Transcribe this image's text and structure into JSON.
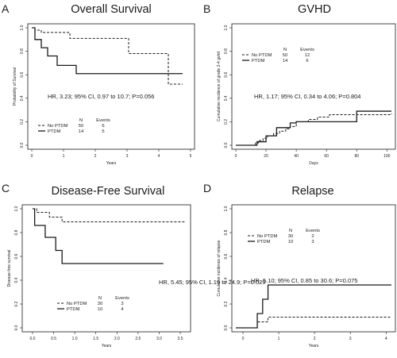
{
  "line_colors": {
    "solid": "#1a1a1a",
    "dashed": "#1a1a1a"
  },
  "chart_data": [
    {
      "type": "line",
      "panel_letter": "A",
      "title": "Overall Survival",
      "xlabel": "Years",
      "ylabel": "Probability of Survival",
      "xlim": [
        0,
        5
      ],
      "ylim": [
        0,
        1
      ],
      "x_ticks": [
        "0",
        "1",
        "2",
        "3",
        "4",
        "5"
      ],
      "y_ticks": [
        "0.0",
        "0.2",
        "0.4",
        "0.6",
        "0.8",
        "1.0"
      ],
      "annotation": "HR, 3.23; 95% CI, 0.97 to 10.7; P=0.056",
      "legend": {
        "col_n": "N",
        "col_events": "Events",
        "rows": [
          {
            "name": "No PTDM",
            "style": "dashed",
            "n": "50",
            "events": "6"
          },
          {
            "name": "PTDM",
            "style": "solid",
            "n": "14",
            "events": "5"
          }
        ]
      },
      "series": [
        {
          "name": "No PTDM",
          "style": "dashed",
          "x": [
            0,
            0.1,
            0.3,
            0.8,
            1.2,
            3.05,
            4.3,
            4.75
          ],
          "y": [
            1.0,
            0.98,
            0.96,
            0.96,
            0.91,
            0.78,
            0.52,
            0.52
          ]
        },
        {
          "name": "PTDM",
          "style": "solid",
          "x": [
            0,
            0.1,
            0.3,
            0.5,
            0.8,
            1.4,
            4.75
          ],
          "y": [
            1.0,
            0.9,
            0.83,
            0.76,
            0.68,
            0.61,
            0.61
          ]
        }
      ]
    },
    {
      "type": "line",
      "panel_letter": "B",
      "title": "GVHD",
      "xlabel": "Days",
      "ylabel": "Cumulative incidence of grade 2-4 gvhd",
      "xlim": [
        0,
        103
      ],
      "ylim": [
        0,
        1
      ],
      "x_ticks": [
        "0",
        "20",
        "40",
        "60",
        "80",
        "100"
      ],
      "y_ticks": [
        "0.0",
        "0.2",
        "0.4",
        "0.6",
        "0.8",
        "1.0"
      ],
      "annotation": "HR, 1.17; 95% CI, 0.34 to 4.06; P=0.804",
      "legend": {
        "col_n": "N",
        "col_events": "Events",
        "rows": [
          {
            "name": "No PTDM",
            "style": "dashed",
            "n": "50",
            "events": "12"
          },
          {
            "name": "PTDM",
            "style": "solid",
            "n": "14",
            "events": "6"
          }
        ]
      },
      "series": [
        {
          "name": "No PTDM",
          "style": "dashed",
          "x": [
            0,
            13,
            15,
            18,
            21,
            25,
            29,
            33,
            36,
            40,
            48,
            54,
            62,
            80,
            92,
            103
          ],
          "y": [
            0,
            0.02,
            0.04,
            0.06,
            0.08,
            0.1,
            0.12,
            0.14,
            0.16,
            0.2,
            0.22,
            0.24,
            0.26,
            0.26,
            0.26,
            0.27
          ]
        },
        {
          "name": "PTDM",
          "style": "solid",
          "x": [
            0,
            14,
            20,
            27,
            36,
            40,
            80,
            103
          ],
          "y": [
            0,
            0.03,
            0.08,
            0.15,
            0.19,
            0.2,
            0.29,
            0.29
          ]
        }
      ]
    },
    {
      "type": "line",
      "panel_letter": "C",
      "title": "Disease-Free Survival",
      "xlabel": "Years",
      "ylabel": "Disease-free survival",
      "xlim": [
        -0.15,
        3.65
      ],
      "ylim": [
        0,
        1
      ],
      "x_ticks": [
        "0.0",
        "0.5",
        "1.0",
        "1.5",
        "2.0",
        "2.5",
        "3.0",
        "3.5"
      ],
      "y_ticks": [
        "0.0",
        "0.2",
        "0.4",
        "0.6",
        "0.8",
        "1.0"
      ],
      "annotation": "HR, 5.45; 95% CI, 1.19 to 24.9; P=0.029",
      "legend": {
        "col_n": "N",
        "col_events": "Events",
        "rows": [
          {
            "name": "No PTDM",
            "style": "dashed",
            "n": "30",
            "events": "3"
          },
          {
            "name": "PTDM",
            "style": "solid",
            "n": "10",
            "events": "4"
          }
        ]
      },
      "series": [
        {
          "name": "No PTDM",
          "style": "dashed",
          "x": [
            0,
            0.1,
            0.4,
            0.7,
            3.6
          ],
          "y": [
            1.0,
            0.97,
            0.93,
            0.89,
            0.89
          ]
        },
        {
          "name": "PTDM",
          "style": "solid",
          "x": [
            0,
            0.05,
            0.3,
            0.55,
            0.7,
            3.1
          ],
          "y": [
            1.0,
            0.86,
            0.76,
            0.65,
            0.54,
            0.54
          ]
        }
      ]
    },
    {
      "type": "line",
      "panel_letter": "D",
      "title": "Relapse",
      "xlabel": "Years",
      "ylabel": "Cumulative incidence of relapse",
      "xlim": [
        -0.2,
        4.15
      ],
      "ylim": [
        0,
        1
      ],
      "x_ticks": [
        "0",
        "1",
        "2",
        "3",
        "4"
      ],
      "y_ticks": [
        "0.0",
        "0.2",
        "0.4",
        "0.6",
        "0.8",
        "1.0"
      ],
      "annotation": "HR, 5.10; 95% CI, 0.85 to 30.6; P=0.075",
      "legend": {
        "col_n": "N",
        "col_events": "Events",
        "rows": [
          {
            "name": "No PTDM",
            "style": "dashed",
            "n": "30",
            "events": "2"
          },
          {
            "name": "PTDM",
            "style": "solid",
            "n": "10",
            "events": "3"
          }
        ]
      },
      "series": [
        {
          "name": "No PTDM",
          "style": "dashed",
          "x": [
            -0.2,
            0.4,
            0.6,
            0.7,
            4.15
          ],
          "y": [
            0,
            0.05,
            0.05,
            0.09,
            0.09
          ]
        },
        {
          "name": "PTDM",
          "style": "solid",
          "x": [
            -0.2,
            0.4,
            0.55,
            0.7,
            4.15
          ],
          "y": [
            0,
            0.12,
            0.24,
            0.36,
            0.36
          ]
        }
      ]
    }
  ]
}
